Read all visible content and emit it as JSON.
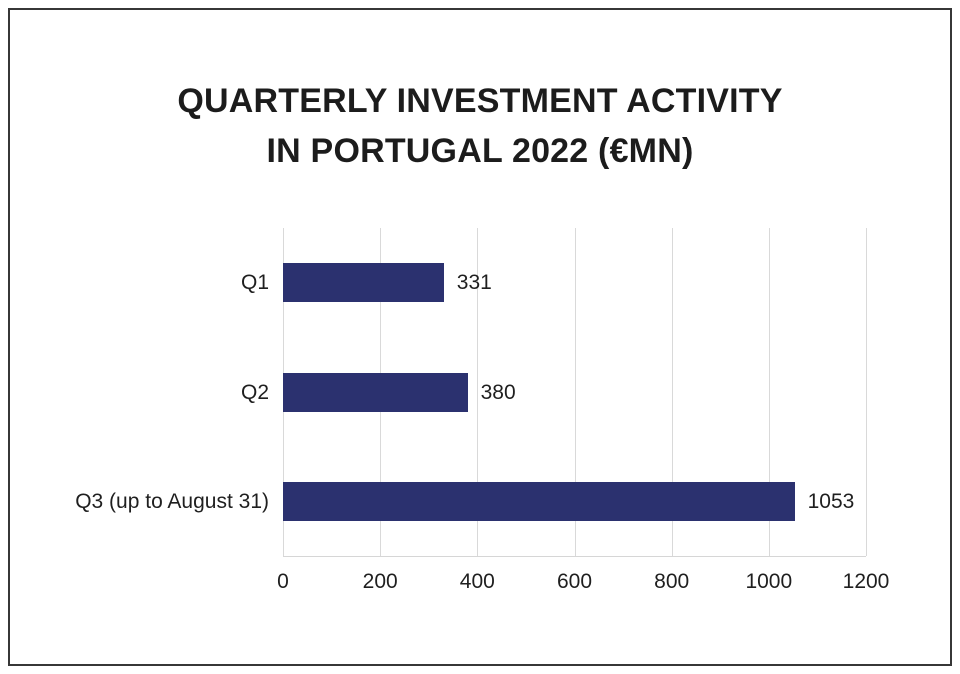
{
  "figure": {
    "background": "#ffffff",
    "border_color": "#373737"
  },
  "chart_data": {
    "type": "bar",
    "orientation": "horizontal",
    "title": "QUARTERLY INVESTMENT ACTIVITY IN PORTUGAL 2022 (€MN)",
    "title_lines": [
      "QUARTERLY INVESTMENT ACTIVITY",
      "IN PORTUGAL 2022 (€MN)"
    ],
    "categories": [
      "Q1",
      "Q2",
      "Q3 (up to August 31)"
    ],
    "values": [
      331,
      380,
      1053
    ],
    "data_labels": [
      "331",
      "380",
      "1053"
    ],
    "xlabel": "",
    "ylabel": "",
    "xlim": [
      0,
      1200
    ],
    "xticks": [
      0,
      200,
      400,
      600,
      800,
      1000,
      1200
    ],
    "xtick_labels": [
      "0",
      "200",
      "400",
      "600",
      "800",
      "1000",
      "1200"
    ],
    "grid": "vertical",
    "legend": "none",
    "bar_color": "#2b316f",
    "gridline_color": "#d9d9d9",
    "text_color": "#1f1f1f"
  }
}
